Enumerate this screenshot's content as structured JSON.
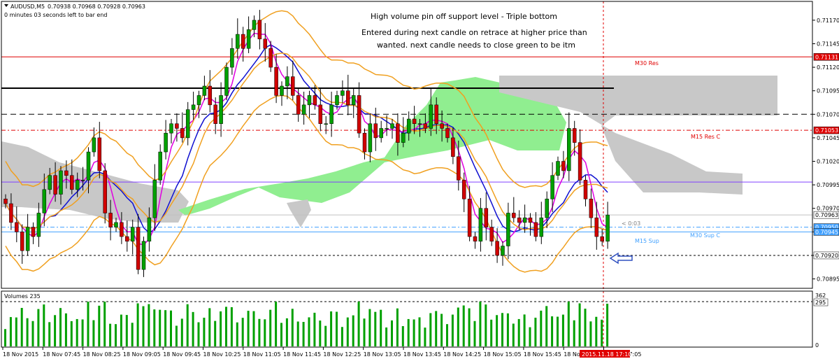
{
  "header": {
    "symbol": "AUDUSD,M5",
    "ohlc": "0.70938 0.70968 0.70928 0.70963",
    "timer": "0 minutes 03 seconds left to bar end"
  },
  "annotations": {
    "line1": "High volume pin off support level - Triple bottom",
    "line2": "Entered during next candle on retrace at higher price than",
    "line3": "wanted. next candle needs to close green to be itm"
  },
  "level_labels": {
    "m30_res": "M30 Res",
    "m15_res_c": "M15 Res C",
    "m30_sup_c": "M30 Sup C",
    "m15_sup": "M15 Sup",
    "countdown": "< 0:03"
  },
  "volumes_label": "Volumes 235",
  "colors": {
    "bull": "#00a000",
    "bear": "#d00000",
    "tenkan": "#1010d0",
    "kijun": "#e000e0",
    "bands": "#f0a020",
    "cloud_bull": "#90ee90",
    "cloud_bear": "#c8c8c8",
    "res": "#e00000",
    "sup": "#40a0ff",
    "arrow": "#3050c0"
  },
  "chart_data": {
    "type": "candlestick",
    "symbol": "AUDUSD",
    "timeframe": "M5",
    "ylim": [
      0.70885,
      0.7119
    ],
    "y_ticks": [
      "0.71170",
      "0.71145",
      "0.71120",
      "0.71095",
      "0.71070",
      "0.71045",
      "0.71020",
      "0.70995",
      "0.70970",
      "0.70945",
      "0.70920",
      "0.70895"
    ],
    "x_ticks": [
      "18 Nov 2015",
      "18 Nov 07:45",
      "18 Nov 08:25",
      "18 Nov 09:05",
      "18 Nov 09:45",
      "18 Nov 10:25",
      "18 Nov 11:05",
      "18 Nov 11:45",
      "18 Nov 12:25",
      "18 Nov 13:05",
      "18 Nov 13:45",
      "18 Nov 14:25",
      "18 Nov 15:05",
      "18 Nov 15:45",
      "18 Nov 16:25",
      "18 Nov 17:05"
    ],
    "cursor_label": "2015.11.18 17:10",
    "levels": [
      {
        "name": "M30 Res",
        "price": 0.71131,
        "label": "0.71131"
      },
      {
        "name": "M15 Res C",
        "price": 0.71053,
        "label": "0.71053"
      },
      {
        "name": "M30 Sup C",
        "price": 0.7095,
        "label": "0.70950"
      },
      {
        "name": "M15 Sup",
        "price": 0.70945,
        "label": "0.70945"
      },
      {
        "name": "support",
        "price": 0.7092,
        "label": "0.70920"
      },
      {
        "name": "current",
        "price": 0.70963,
        "label": "0.70963"
      }
    ],
    "volume_levels": [
      "362",
      "295",
      "0"
    ],
    "closes": [
      0.70975,
      0.70955,
      0.70945,
      0.70925,
      0.7095,
      0.7094,
      0.70965,
      0.7099,
      0.71005,
      0.70985,
      0.7101,
      0.71005,
      0.7099,
      0.71,
      0.71,
      0.7103,
      0.71045,
      0.7101,
      0.70965,
      0.7095,
      0.70955,
      0.7094,
      0.70935,
      0.7095,
      0.70905,
      0.70935,
      0.7096,
      0.71,
      0.7103,
      0.7105,
      0.7106,
      0.71055,
      0.71045,
      0.71075,
      0.7108,
      0.7109,
      0.711,
      0.7108,
      0.7106,
      0.7109,
      0.7112,
      0.7114,
      0.71155,
      0.7114,
      0.7116,
      0.7117,
      0.7115,
      0.7114,
      0.7112,
      0.7109,
      0.711,
      0.7111,
      0.7109,
      0.7107,
      0.7108,
      0.7109,
      0.7108,
      0.7106,
      0.7106,
      0.7108,
      0.7109,
      0.71095,
      0.7108,
      0.7109,
      0.7105,
      0.7103,
      0.7106,
      0.71045,
      0.71055,
      0.71055,
      0.7106,
      0.7104,
      0.7105,
      0.71065,
      0.7106,
      0.7106,
      0.71055,
      0.7108,
      0.7106,
      0.71055,
      0.71045,
      0.71025,
      0.71,
      0.7098,
      0.7094,
      0.70935,
      0.7097,
      0.7095,
      0.70935,
      0.7092,
      0.7093,
      0.70965,
      0.7096,
      0.70955,
      0.7096,
      0.70955,
      0.7094,
      0.7096,
      0.7098,
      0.71005,
      0.7102,
      0.7101,
      0.71055,
      0.7104,
      0.71,
      0.7098,
      0.7096,
      0.7094,
      0.70935,
      0.70963
    ]
  }
}
